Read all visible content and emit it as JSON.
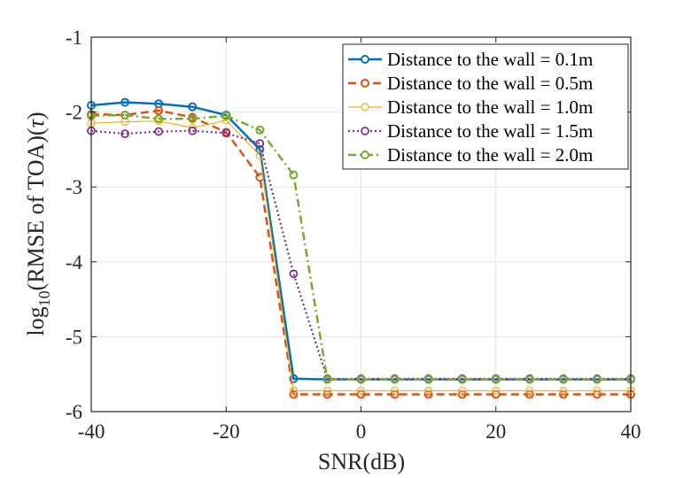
{
  "chart_data": {
    "type": "line",
    "xlabel": "SNR(dB)",
    "ylabel": {
      "prefix": "log",
      "subscript": "10",
      "suffix": "(RMSE of TOA)(",
      "symbol": "τ",
      "close": ")"
    },
    "xlim": [
      -40,
      40
    ],
    "ylim": [
      -6,
      -1
    ],
    "xticks": [
      -40,
      -20,
      0,
      20,
      40
    ],
    "yticks": [
      -1,
      -2,
      -3,
      -4,
      -5,
      -6
    ],
    "xtick_labels": [
      "-40",
      "-20",
      "0",
      "20",
      "40"
    ],
    "ytick_labels": [
      "-1",
      "-2",
      "-3",
      "-4",
      "-5",
      "-6"
    ],
    "grid": true,
    "legend_position": "top-right",
    "x": [
      -40,
      -35,
      -30,
      -25,
      -20,
      -15,
      -10,
      -5,
      0,
      5,
      10,
      15,
      20,
      25,
      30,
      35,
      40
    ],
    "series": [
      {
        "name": "Distance to the wall = 0.1m",
        "color": "#0072BD",
        "dash": "solid",
        "width": 2.5,
        "values": [
          -1.91,
          -1.87,
          -1.89,
          -1.93,
          -2.04,
          -2.5,
          -5.56,
          -5.57,
          -5.57,
          -5.57,
          -5.57,
          -5.57,
          -5.57,
          -5.57,
          -5.57,
          -5.57,
          -5.57
        ]
      },
      {
        "name": "Distance to the wall = 0.5m",
        "color": "#D95319",
        "dash": "dashed",
        "width": 2.5,
        "values": [
          -2.03,
          -2.04,
          -1.98,
          -2.07,
          -2.27,
          -2.87,
          -5.77,
          -5.77,
          -5.77,
          -5.77,
          -5.77,
          -5.77,
          -5.77,
          -5.77,
          -5.77,
          -5.77,
          -5.77
        ]
      },
      {
        "name": "Distance to the wall = 1.0m",
        "color": "#EDB120",
        "dash": "solid",
        "width": 1.2,
        "values": [
          -2.15,
          -2.13,
          -2.12,
          -2.21,
          -2.11,
          -2.58,
          -5.72,
          -5.72,
          -5.72,
          -5.72,
          -5.72,
          -5.72,
          -5.72,
          -5.72,
          -5.72,
          -5.72,
          -5.72
        ]
      },
      {
        "name": "Distance to the wall = 1.5m",
        "color": "#7E2F8E",
        "dash": "dotted",
        "width": 2.2,
        "values": [
          -2.25,
          -2.29,
          -2.26,
          -2.25,
          -2.28,
          -2.42,
          -4.16,
          -5.56,
          -5.56,
          -5.56,
          -5.56,
          -5.56,
          -5.56,
          -5.56,
          -5.56,
          -5.56,
          -5.56
        ]
      },
      {
        "name": "Distance to the wall = 2.0m",
        "color": "#77AC30",
        "dash": "dashdot",
        "width": 2.5,
        "values": [
          -2.05,
          -2.04,
          -2.09,
          -2.09,
          -2.05,
          -2.24,
          -2.84,
          -5.57,
          -5.57,
          -5.57,
          -5.57,
          -5.57,
          -5.57,
          -5.57,
          -5.57,
          -5.57,
          -5.57
        ]
      }
    ]
  }
}
